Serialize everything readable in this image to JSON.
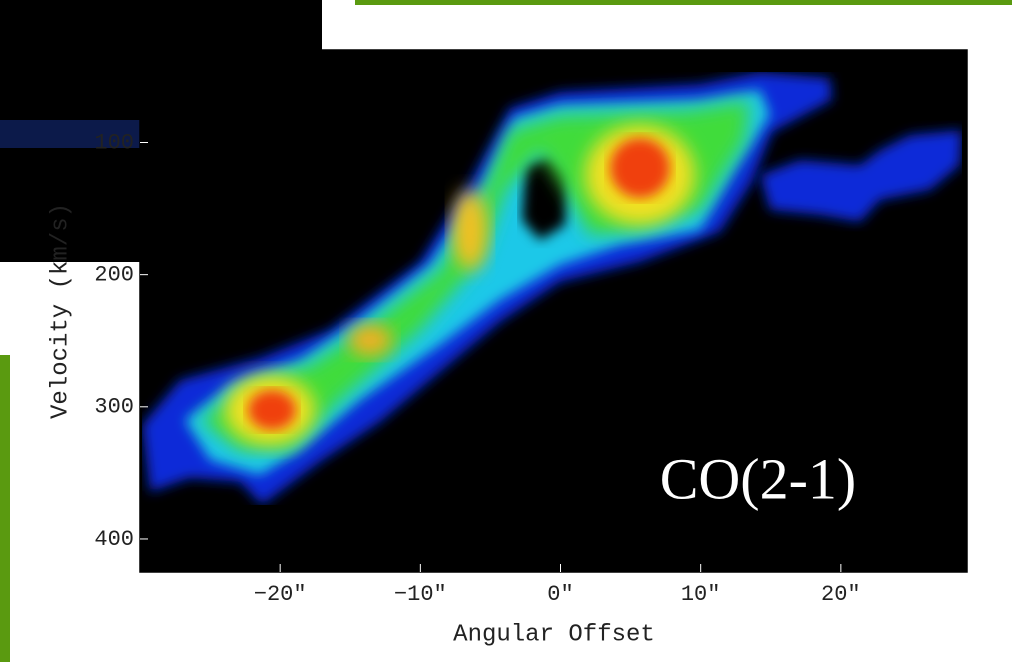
{
  "chart_data": {
    "type": "pv-diagram",
    "annotation": "CO(2-1)",
    "xlabel": "Angular Offset",
    "ylabel": "Velocity (km/s)",
    "xlim": [
      -30,
      29
    ],
    "ylim": [
      30,
      425
    ],
    "y_inverted": true,
    "xticks": [
      {
        "value": -20,
        "label": "−20″"
      },
      {
        "value": -10,
        "label": "−10″"
      },
      {
        "value": 0,
        "label": "0″"
      },
      {
        "value": 10,
        "label": "10″"
      },
      {
        "value": 20,
        "label": "20″"
      }
    ],
    "yticks": [
      100,
      200,
      300,
      400
    ]
  }
}
